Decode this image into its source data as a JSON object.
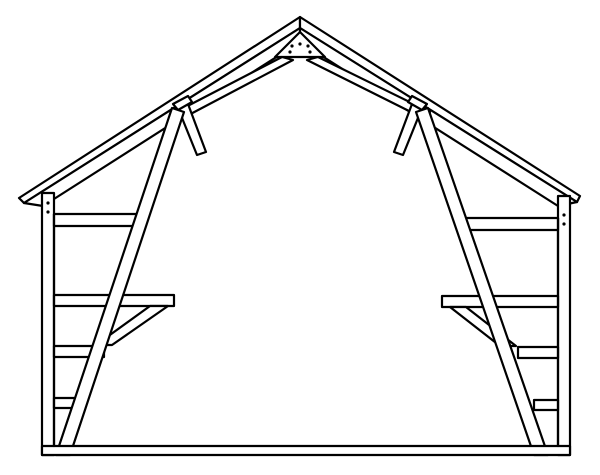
{
  "figure": {
    "kind": "line-drawing",
    "subject": "barn-frame-cross-section",
    "colors": {
      "ink": "#000000",
      "paper": "#ffffff"
    },
    "members": [
      "left-post",
      "right-post",
      "floor-sill",
      "left-rafter",
      "right-rafter",
      "left-diagonal-brace",
      "right-diagonal-brace",
      "left-strut",
      "right-strut",
      "left-upper-girt",
      "right-upper-girt",
      "left-loft-beam",
      "right-loft-beam",
      "left-lower-girt",
      "right-lower-girt",
      "left-bottom-girt",
      "right-bottom-girt",
      "peak-gusset-plate"
    ]
  }
}
